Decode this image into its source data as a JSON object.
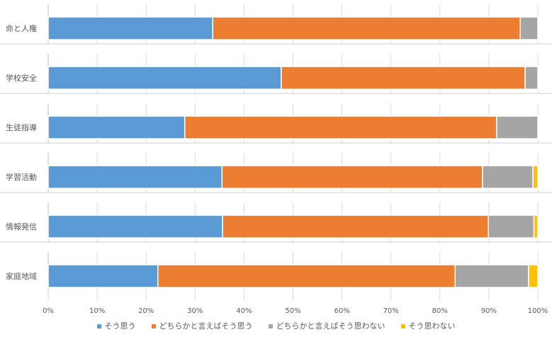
{
  "chart_data": {
    "type": "bar",
    "orientation": "horizontal",
    "stacked": true,
    "categories": [
      "命と人権",
      "学校安全",
      "生徒指導",
      "学習活動",
      "情報発信",
      "家庭地域"
    ],
    "series": [
      {
        "name": "そう思う",
        "color": "#5B9BD5",
        "values": [
          33.6,
          47.6,
          27.9,
          35.5,
          35.6,
          22.4
        ]
      },
      {
        "name": "どちらかと言えばそう思う",
        "color": "#ED7D31",
        "values": [
          62.8,
          49.8,
          63.7,
          53.2,
          54.3,
          60.7
        ]
      },
      {
        "name": "どちらかと言えばそう思わない",
        "color": "#A5A5A5",
        "values": [
          3.6,
          2.6,
          8.4,
          10.3,
          9.3,
          15.0
        ]
      },
      {
        "name": "そう思わない",
        "color": "#FFC000",
        "values": [
          0,
          0,
          0,
          1.0,
          0.8,
          1.9
        ]
      }
    ],
    "xlim": [
      0,
      100
    ],
    "xticks": [
      "0%",
      "10%",
      "20%",
      "30%",
      "40%",
      "50%",
      "60%",
      "70%",
      "80%",
      "90%",
      "100%"
    ],
    "legend": "bottom",
    "grid": true
  }
}
